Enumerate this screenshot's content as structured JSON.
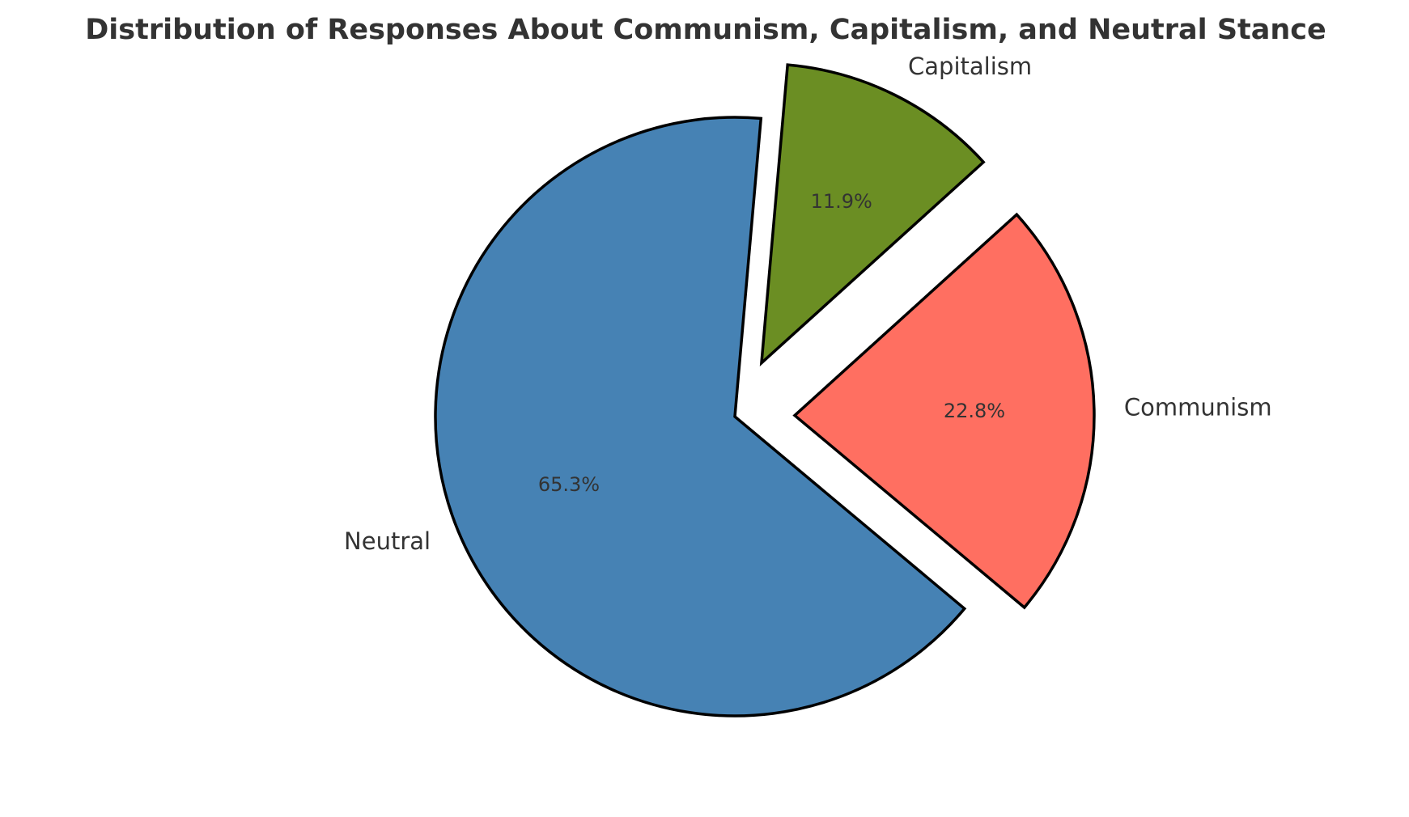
{
  "chart_data": {
    "type": "pie",
    "title": "Distribution of Responses About Communism, Capitalism, and Neutral Stance",
    "slices": [
      {
        "label": "Neutral",
        "value": 65.3,
        "pct_label": "65.3%",
        "color": "#4682b4",
        "exploded": false
      },
      {
        "label": "Communism",
        "value": 22.8,
        "pct_label": "22.8%",
        "color": "#ff6f61",
        "exploded": true
      },
      {
        "label": "Capitalism",
        "value": 11.9,
        "pct_label": "11.9%",
        "color": "#6b8e23",
        "exploded": true
      }
    ],
    "edge_color": "#000000"
  }
}
